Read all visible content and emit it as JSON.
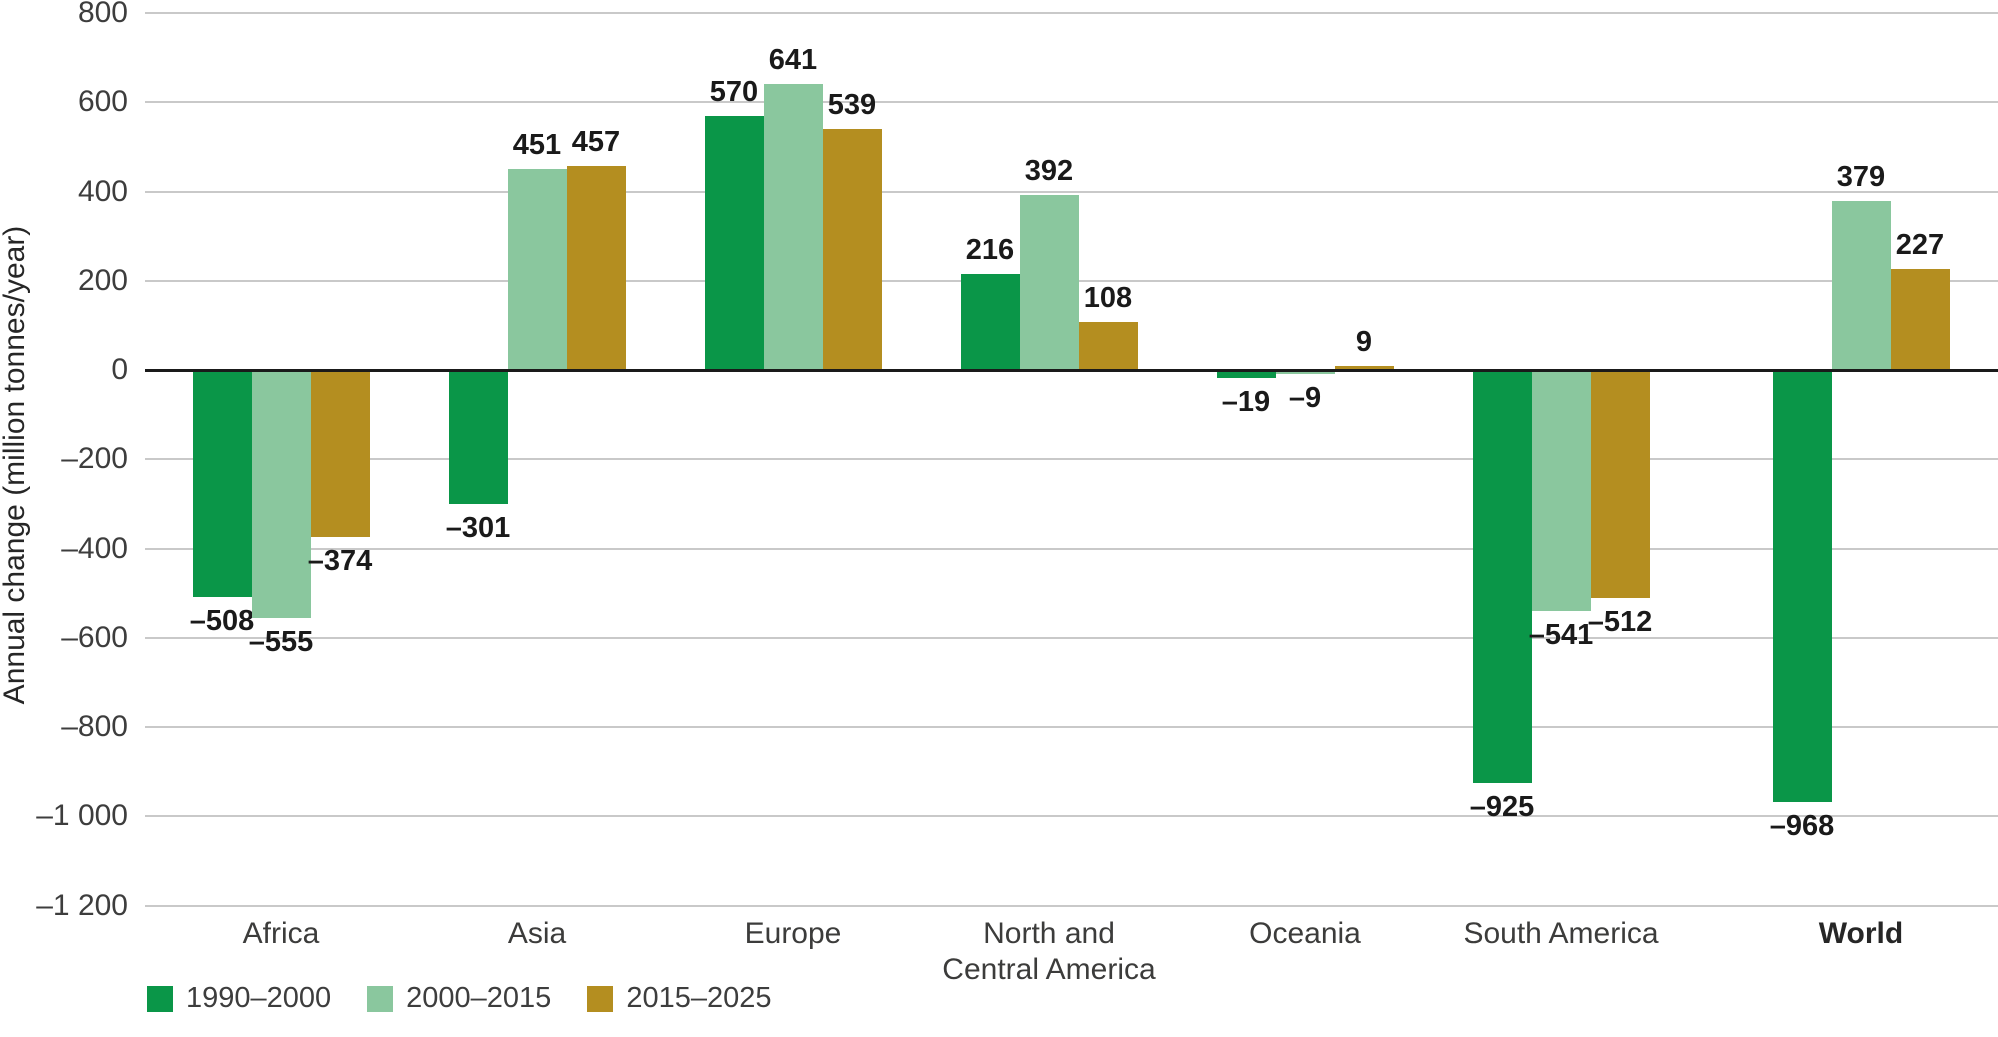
{
  "chart_data": {
    "type": "bar",
    "title": "",
    "ylabel": "Annual change (million tonnes/year)",
    "xlabel": "",
    "categories": [
      "Africa",
      "Asia",
      "Europe",
      "North and\nCentral America",
      "Oceania",
      "South America",
      "World"
    ],
    "series": [
      {
        "name": "1990–2000",
        "color": "#0a9648",
        "values": [
          -508,
          -301,
          570,
          216,
          -19,
          -925,
          -968
        ]
      },
      {
        "name": "2000–2015",
        "color": "#8ac79e",
        "values": [
          -555,
          451,
          641,
          392,
          -9,
          -541,
          379
        ]
      },
      {
        "name": "2015–2025",
        "color": "#b48e20",
        "values": [
          -374,
          457,
          539,
          108,
          9,
          -512,
          227
        ]
      }
    ],
    "ylim": [
      -1200,
      800
    ],
    "yticks": [
      {
        "value": 800,
        "label": "800"
      },
      {
        "value": 600,
        "label": "600"
      },
      {
        "value": 400,
        "label": "400"
      },
      {
        "value": 200,
        "label": "200"
      },
      {
        "value": 0,
        "label": "0"
      },
      {
        "value": -200,
        "label": "–200"
      },
      {
        "value": -400,
        "label": "–400"
      },
      {
        "value": -600,
        "label": "–600"
      },
      {
        "value": -800,
        "label": "–800"
      },
      {
        "value": -1000,
        "label": "–1 000"
      },
      {
        "value": -1200,
        "label": "–1 200"
      }
    ],
    "grid": "horizontal",
    "legend_position": "bottom-left",
    "emphasize_last_category": true,
    "colors": {
      "grid": "#c9c9c9",
      "zero_line": "#1a1a1a",
      "data_label": "#1a1a1a"
    }
  }
}
